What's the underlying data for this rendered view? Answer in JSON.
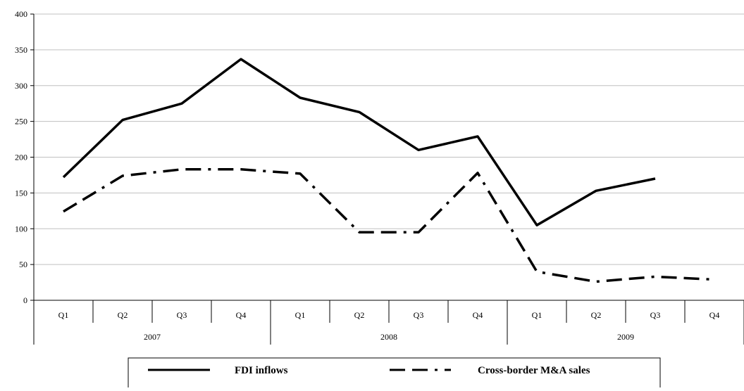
{
  "chart_data": {
    "type": "line",
    "quarters": [
      "Q1",
      "Q2",
      "Q3",
      "Q4",
      "Q1",
      "Q2",
      "Q3",
      "Q4",
      "Q1",
      "Q2",
      "Q3",
      "Q4"
    ],
    "years": [
      "2007",
      "2008",
      "2009"
    ],
    "ylim": [
      0,
      400
    ],
    "yticks": [
      "0",
      "50",
      "100",
      "150",
      "200",
      "250",
      "300",
      "350",
      "400"
    ],
    "grid": true,
    "legend_position": "bottom",
    "series": [
      {
        "name": "FDI inflows",
        "style": "solid",
        "color": "#000000",
        "values": [
          172,
          252,
          275,
          337,
          283,
          263,
          210,
          229,
          105,
          153,
          170,
          null
        ]
      },
      {
        "name": "Cross-border M&A sales",
        "style": "dashed",
        "color": "#000000",
        "values": [
          124,
          174,
          183,
          183,
          177,
          95,
          95,
          178,
          40,
          26,
          33,
          29
        ]
      }
    ]
  }
}
